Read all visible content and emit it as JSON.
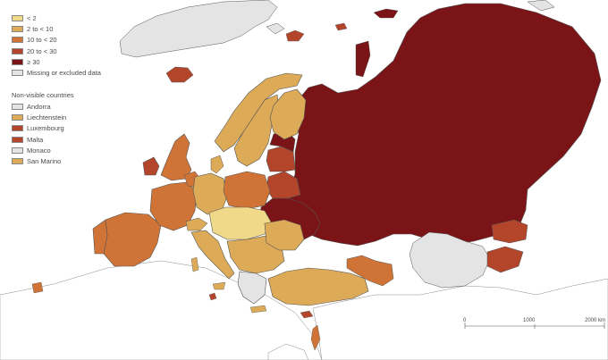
{
  "colors": {
    "lt2": "#f1d98a",
    "2to10": "#ddaa57",
    "10to20": "#cf7436",
    "20to30": "#b2452a",
    "ge30": "#7a1416",
    "missing": "#e4e4e4",
    "border": "#555555",
    "sea": "#ffffff"
  },
  "legend": {
    "items": [
      {
        "label": "< 2",
        "color": "#f1d98a"
      },
      {
        "label": "2 to < 10",
        "color": "#ddaa57"
      },
      {
        "label": "10 to < 20",
        "color": "#cf7436"
      },
      {
        "label": "20 to < 30",
        "color": "#b2452a"
      },
      {
        "label": "≥ 30",
        "color": "#7a1416"
      },
      {
        "label": "Missing or excluded data",
        "color": "#e4e4e4"
      }
    ],
    "nonvisible_heading": "Non-visible countries",
    "nonvisible": [
      {
        "label": "Andorra",
        "color": "#e4e4e4"
      },
      {
        "label": "Liechtenstein",
        "color": "#ddaa57"
      },
      {
        "label": "Luxembourg",
        "color": "#b2452a"
      },
      {
        "label": "Malta",
        "color": "#b2452a"
      },
      {
        "label": "Monaco",
        "color": "#e4e4e4"
      },
      {
        "label": "San Marino",
        "color": "#ddaa57"
      }
    ]
  },
  "scale": {
    "ticks": [
      "0",
      "1000",
      "2000 km"
    ]
  }
}
